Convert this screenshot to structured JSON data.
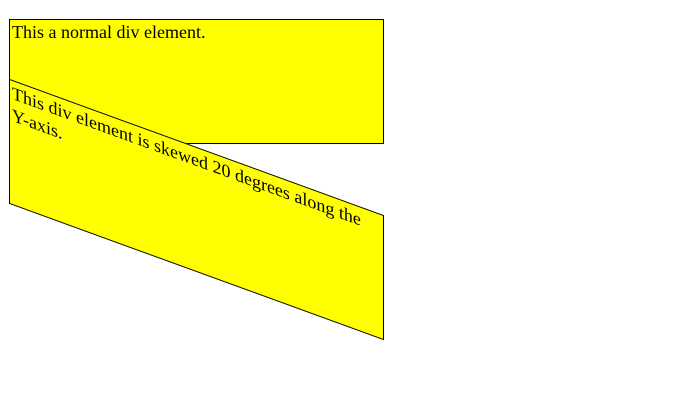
{
  "normal_div": {
    "text": "This a normal div element."
  },
  "skewed_div": {
    "text": "This div element is skewed 20 degrees along the Y-axis."
  },
  "colors": {
    "box_background": "#ffff00",
    "box_border": "#000000",
    "page_background": "#ffffff"
  }
}
